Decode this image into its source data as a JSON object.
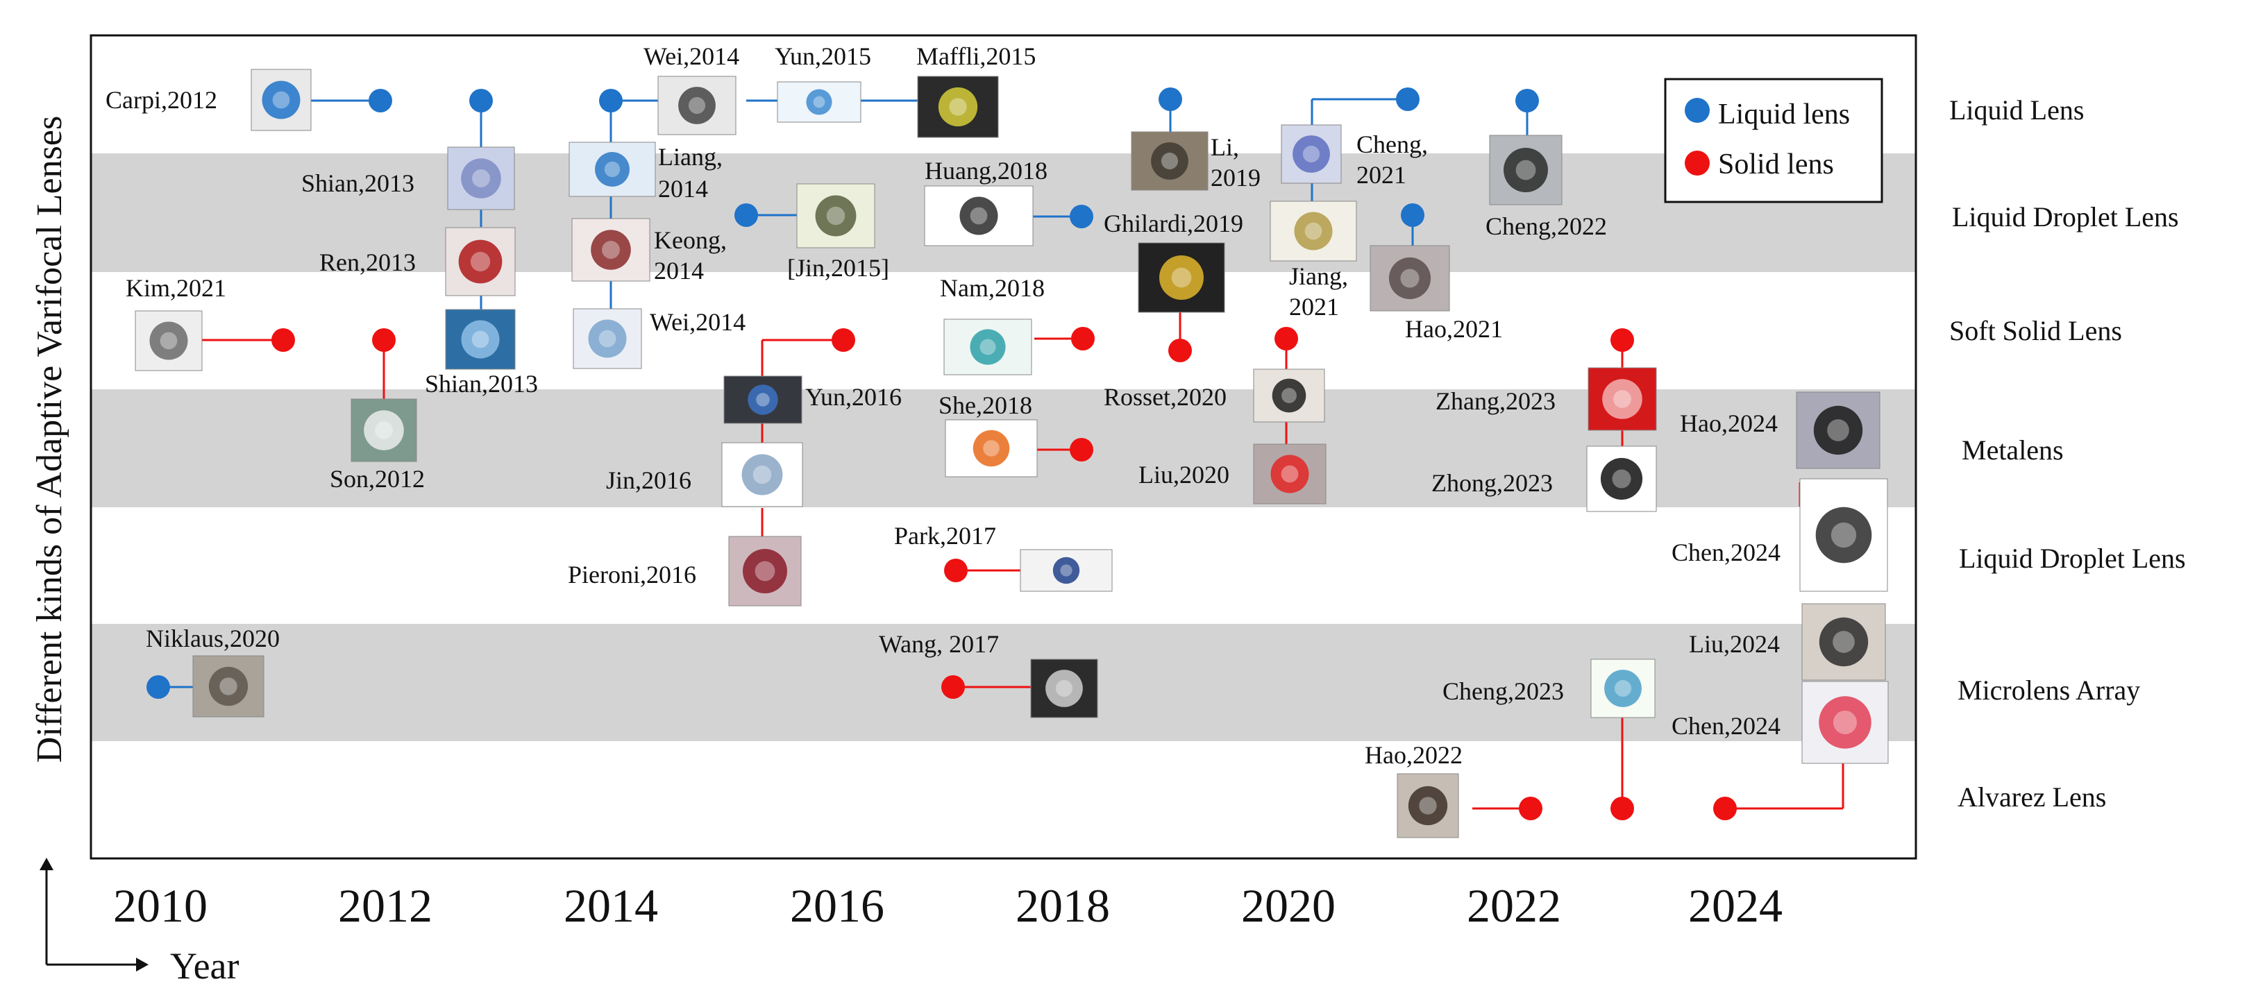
{
  "y_axis_label": "Different kinds of Adaptive Varifocal Lenses",
  "x_axis_label": "Year",
  "years": [
    "2010",
    "2012",
    "2014",
    "2016",
    "2018",
    "2020",
    "2022",
    "2024"
  ],
  "categories": [
    "Liquid Lens",
    "Liquid Droplet Lens",
    "Soft Solid Lens",
    "Metalens",
    "Liquid Droplet Lens",
    "Microlens Array",
    "Alvarez Lens"
  ],
  "legend": {
    "liquid": "Liquid lens",
    "solid": "Solid lens"
  },
  "colors": {
    "liquid": "#1f73c9",
    "solid": "#ee1111",
    "band": "#d4d3d3",
    "frame": "#111111"
  },
  "entries": [
    {
      "text": "Carpi,2012",
      "year": 2012.0,
      "band": 0,
      "type": "liquid"
    },
    {
      "text": "Shian,2013",
      "year": 2013.0,
      "band": 1,
      "type": "liquid"
    },
    {
      "text": "Ren,2013",
      "year": 2013.0,
      "band": 1,
      "type": "liquid"
    },
    {
      "text": "Shian,2013",
      "year": 2013.0,
      "band": 2,
      "type": "liquid"
    },
    {
      "text": "Wei,2014",
      "year": 2014.0,
      "band": 0,
      "type": "liquid"
    },
    {
      "text": "Liang,",
      "year": 2014.0,
      "band": 1,
      "type": "liquid"
    },
    {
      "text": "2014",
      "year": 2014.0,
      "band": 1,
      "type": "liquid"
    },
    {
      "text": "Keong,",
      "year": 2014.0,
      "band": 1,
      "type": "liquid"
    },
    {
      "text": "2014",
      "year": 2014.0,
      "band": 1,
      "type": "liquid"
    },
    {
      "text": "Wei,2014",
      "year": 2014.0,
      "band": 2,
      "type": "liquid"
    },
    {
      "text": "Yun,2015",
      "year": 2015.0,
      "band": 0,
      "type": "liquid"
    },
    {
      "text": "Maffli,2015",
      "year": 2015.0,
      "band": 0,
      "type": "liquid"
    },
    {
      "text": "[Jin,2015]",
      "year": 2015.0,
      "band": 1,
      "type": "liquid"
    },
    {
      "text": "Kim,2021",
      "year": 2021.0,
      "band": 2,
      "type": "solid"
    },
    {
      "text": "Son,2012",
      "year": 2012.0,
      "band": 3,
      "type": "solid"
    },
    {
      "text": "Yun,2016",
      "year": 2016.0,
      "band": 3,
      "type": "solid"
    },
    {
      "text": "Jin,2016",
      "year": 2016.0,
      "band": 3,
      "type": "solid"
    },
    {
      "text": "Pieroni,2016",
      "year": 2016.0,
      "band": 4,
      "type": "solid"
    },
    {
      "text": "Huang,2018",
      "year": 2018.0,
      "band": 1,
      "type": "liquid"
    },
    {
      "text": "Nam,2018",
      "year": 2018.0,
      "band": 2,
      "type": "solid"
    },
    {
      "text": "She,2018",
      "year": 2018.0,
      "band": 3,
      "type": "solid"
    },
    {
      "text": "Park,2017",
      "year": 2017.0,
      "band": 4,
      "type": "solid"
    },
    {
      "text": "Wang, 2017",
      "year": 2017.0,
      "band": 5,
      "type": "solid"
    },
    {
      "text": "Niklaus,2020",
      "year": 2020.0,
      "band": 5,
      "type": "liquid"
    },
    {
      "text": "Li,",
      "year": 2019.0,
      "band": 0,
      "type": "liquid"
    },
    {
      "text": "2019",
      "year": 2019.0,
      "band": 0,
      "type": "liquid"
    },
    {
      "text": "Ghilardi,2019",
      "year": 2019.0,
      "band": 1,
      "type": "solid"
    },
    {
      "text": "Cheng,",
      "year": 2021.0,
      "band": 0,
      "type": "liquid"
    },
    {
      "text": "2021",
      "year": 2021.0,
      "band": 0,
      "type": "liquid"
    },
    {
      "text": "Jiang,",
      "year": 2021.0,
      "band": 1,
      "type": "liquid"
    },
    {
      "text": "2021",
      "year": 2021.0,
      "band": 1,
      "type": "liquid"
    },
    {
      "text": "Rosset,2020",
      "year": 2020.0,
      "band": 3,
      "type": "solid"
    },
    {
      "text": "Liu,2020",
      "year": 2020.0,
      "band": 3,
      "type": "solid"
    },
    {
      "text": "Hao,2021",
      "year": 2021.0,
      "band": 2,
      "type": "liquid"
    },
    {
      "text": "Cheng,2022",
      "year": 2022.0,
      "band": 1,
      "type": "liquid"
    },
    {
      "text": "Zhang,2023",
      "year": 2023.0,
      "band": 3,
      "type": "solid"
    },
    {
      "text": "Zhong,2023",
      "year": 2023.0,
      "band": 3,
      "type": "solid"
    },
    {
      "text": "Cheng,2023",
      "year": 2023.0,
      "band": 5,
      "type": "solid"
    },
    {
      "text": "Hao,2022",
      "year": 2022.0,
      "band": 6,
      "type": "solid"
    },
    {
      "text": "Hao,2024",
      "year": 2024.0,
      "band": 3,
      "type": "solid"
    },
    {
      "text": "Chen,2024",
      "year": 2024.0,
      "band": 4,
      "type": "solid"
    },
    {
      "text": "Liu,2024",
      "year": 2024.0,
      "band": 5,
      "type": "solid"
    },
    {
      "text": "Chen,2024",
      "year": 2024.0,
      "band": 5,
      "type": "solid"
    }
  ]
}
